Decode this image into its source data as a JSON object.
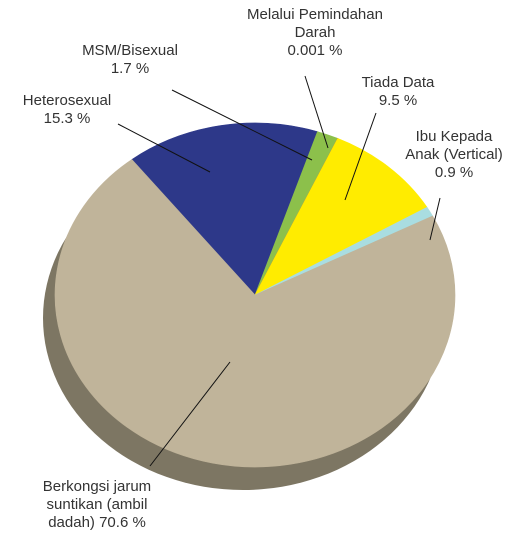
{
  "chart_data": {
    "type": "pie",
    "categories": [
      "Heterosexual",
      "MSM/Bisexual",
      "Melalui Pemindahan Darah",
      "Tiada Data",
      "Ibu Kepada Anak (Vertical)",
      "Berkongsi jarum suntikan (ambil dadah)"
    ],
    "values": [
      15.3,
      1.7,
      0.001,
      9.5,
      0.9,
      70.6
    ],
    "value_labels": [
      "15.3 %",
      "1.7 %",
      "0.001 %",
      "9.5 %",
      "0.9 %",
      "70.6 %"
    ],
    "colors": [
      "#2d3889",
      "#8cc04b",
      "#e3216b",
      "#ffec00",
      "#a9dde1",
      "#c0b49a"
    ]
  }
}
